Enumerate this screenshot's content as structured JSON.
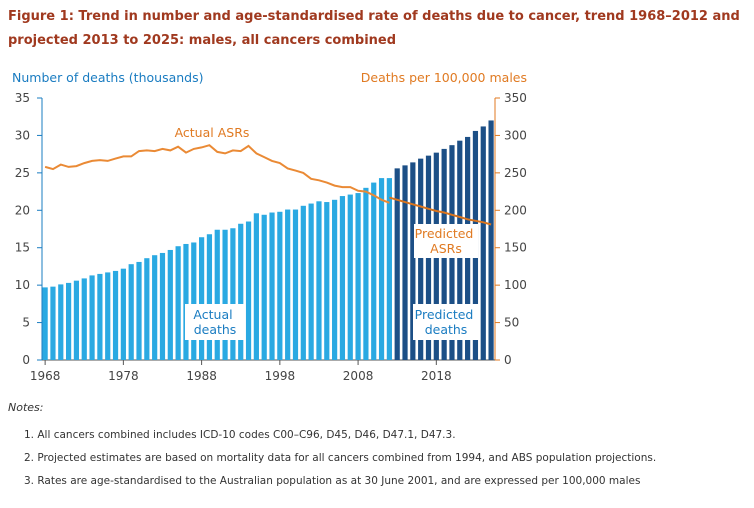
{
  "chart_data": {
    "type": "bar",
    "title_lines": [
      "Figure 1: Trend in number and age-standardised rate of deaths due to cancer, trend 1968–2012 and",
      "projected 2013 to 2025: males, all cancers combined"
    ],
    "y_label": "Number of deaths (thousands)",
    "y2_label": "Deaths per 100,000 males",
    "x": [
      1968,
      1969,
      1970,
      1971,
      1972,
      1973,
      1974,
      1975,
      1976,
      1977,
      1978,
      1979,
      1980,
      1981,
      1982,
      1983,
      1984,
      1985,
      1986,
      1987,
      1988,
      1989,
      1990,
      1991,
      1992,
      1993,
      1994,
      1995,
      1996,
      1997,
      1998,
      1999,
      2000,
      2001,
      2002,
      2003,
      2004,
      2005,
      2006,
      2007,
      2008,
      2009,
      2010,
      2011,
      2012,
      2013,
      2014,
      2015,
      2016,
      2017,
      2018,
      2019,
      2020,
      2021,
      2022,
      2023,
      2024,
      2025
    ],
    "xlim": [
      1967.6,
      2025.5
    ],
    "xticks": [
      1968,
      1978,
      1988,
      1998,
      2008,
      2018
    ],
    "ylim": [
      0,
      35
    ],
    "yticks": [
      0,
      5,
      10,
      15,
      20,
      25,
      30,
      35
    ],
    "y2lim": [
      0,
      350
    ],
    "y2ticks": [
      0,
      50,
      100,
      150,
      200,
      250,
      300,
      350
    ],
    "series": [
      {
        "name": "Actual deaths",
        "type": "bar",
        "color": "#2aa9e2",
        "values": [
          9.7,
          9.8,
          10.1,
          10.3,
          10.6,
          10.9,
          11.3,
          11.5,
          11.7,
          11.9,
          12.2,
          12.8,
          13.1,
          13.6,
          14.0,
          14.3,
          14.7,
          15.2,
          15.5,
          15.7,
          16.4,
          16.8,
          17.4,
          17.4,
          17.6,
          18.2,
          18.5,
          19.6,
          19.4,
          19.7,
          19.8,
          20.1,
          20.1,
          20.6,
          20.9,
          21.2,
          21.1,
          21.4,
          21.9,
          22.1,
          22.3,
          23.0,
          23.7,
          24.3,
          24.3,
          null,
          null,
          null,
          null,
          null,
          null,
          null,
          null,
          null,
          null,
          null,
          null,
          null
        ]
      },
      {
        "name": "Predicted deaths",
        "type": "bar",
        "color": "#1c4f86",
        "values": [
          null,
          null,
          null,
          null,
          null,
          null,
          null,
          null,
          null,
          null,
          null,
          null,
          null,
          null,
          null,
          null,
          null,
          null,
          null,
          null,
          null,
          null,
          null,
          null,
          null,
          null,
          null,
          null,
          null,
          null,
          null,
          null,
          null,
          null,
          null,
          null,
          null,
          null,
          null,
          null,
          null,
          null,
          null,
          null,
          null,
          25.6,
          26.0,
          26.4,
          26.9,
          27.3,
          27.7,
          28.2,
          28.7,
          29.3,
          29.8,
          30.6,
          31.2,
          32.0
        ]
      },
      {
        "name": "Actual ASRs",
        "type": "line",
        "axis": "y2",
        "color": "#ea8a35",
        "values": [
          258,
          255,
          261,
          258,
          259,
          263,
          266,
          267,
          266,
          269,
          272,
          272,
          279,
          280,
          279,
          282,
          280,
          285,
          277,
          282,
          284,
          287,
          278,
          276,
          280,
          279,
          286,
          276,
          271,
          266,
          263,
          256,
          253,
          250,
          242,
          240,
          237,
          233,
          231,
          231,
          226,
          225,
          220,
          214,
          210,
          null,
          null,
          null,
          null,
          null,
          null,
          null,
          null,
          null,
          null,
          null,
          null,
          null
        ]
      },
      {
        "name": "Predicted ASRs",
        "type": "line",
        "axis": "y2",
        "color": "#d9741e",
        "values": [
          null,
          null,
          null,
          null,
          null,
          null,
          null,
          null,
          null,
          null,
          null,
          null,
          null,
          null,
          null,
          null,
          null,
          null,
          null,
          null,
          null,
          null,
          null,
          null,
          null,
          null,
          null,
          null,
          null,
          null,
          null,
          null,
          null,
          null,
          null,
          null,
          null,
          null,
          null,
          null,
          null,
          null,
          null,
          null,
          217,
          214,
          211,
          208,
          205,
          202,
          199,
          197,
          194,
          191,
          188,
          186,
          184,
          181
        ]
      }
    ],
    "notes_heading": "Notes:",
    "notes": [
      "1.  All cancers combined includes ICD-10 codes C00–C96, D45, D46, D47.1, D47.3.",
      "2.  Projected estimates are based on mortality data for all cancers combined from 1994, and ABS population projections.",
      "3.  Rates are age-standardised to the Australian population as at 30 June 2001, and are expressed per 100,000 males"
    ]
  }
}
